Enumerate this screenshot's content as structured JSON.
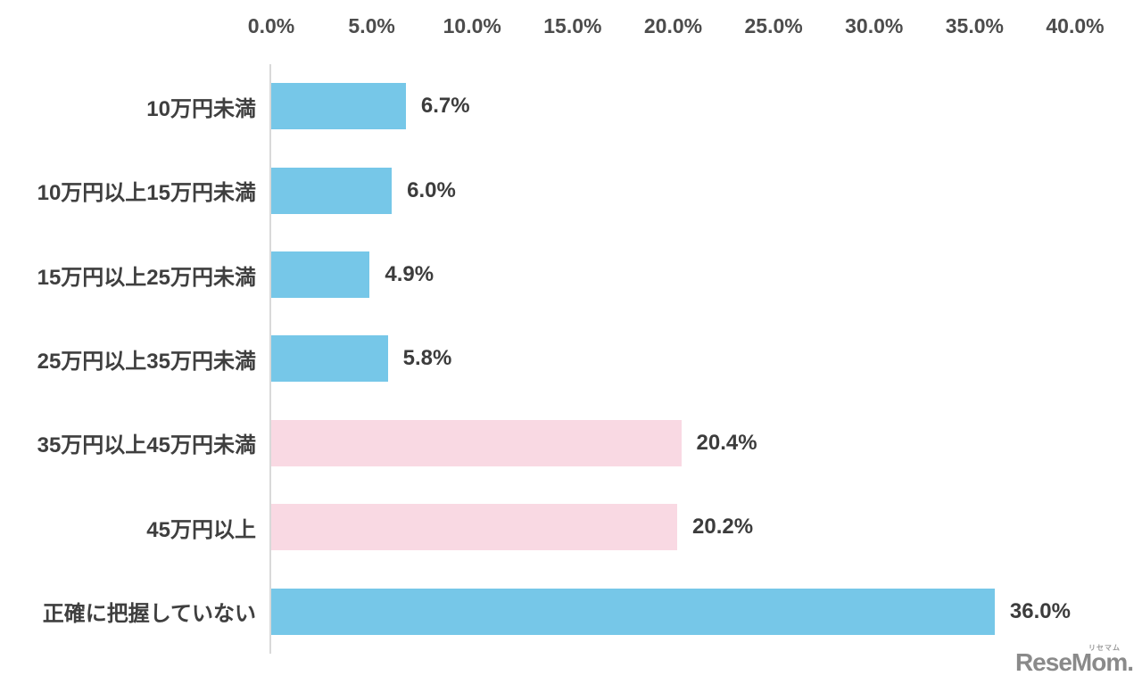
{
  "chart_data": {
    "type": "bar",
    "orientation": "horizontal",
    "title": "",
    "xlabel": "",
    "ylabel": "",
    "grid": false,
    "legend": null,
    "xlim": [
      0,
      40
    ],
    "x_ticks": [
      "0.0%",
      "5.0%",
      "10.0%",
      "15.0%",
      "20.0%",
      "25.0%",
      "30.0%",
      "35.0%",
      "40.0%"
    ],
    "x_tick_values": [
      0,
      5,
      10,
      15,
      20,
      25,
      30,
      35,
      40
    ],
    "categories": [
      "10万円未満",
      "10万円以上15万円未満",
      "15万円以上25万円未満",
      "25万円以上35万円未満",
      "35万円以上45万円未満",
      "45万円以上",
      "正確に把握していない"
    ],
    "values": [
      6.7,
      6.0,
      4.9,
      5.8,
      20.4,
      20.2,
      36.0
    ],
    "value_labels": [
      "6.7%",
      "6.0%",
      "4.9%",
      "5.8%",
      "20.4%",
      "20.2%",
      "36.0%"
    ],
    "bar_colors": [
      "#76c7e8",
      "#76c7e8",
      "#76c7e8",
      "#76c7e8",
      "#f9d9e3",
      "#f9d9e3",
      "#76c7e8"
    ]
  },
  "colors": {
    "blue_bar": "#76c7e8",
    "pink_bar": "#f9d9e3",
    "label_text": "#3f3f3f",
    "tick_text": "#4c4c4c",
    "axis_line": "#d9d9d9",
    "logo": "#8a8a8a",
    "background": "#ffffff"
  },
  "logo": {
    "text": "ReseMom.",
    "katakana": "リセマム"
  }
}
